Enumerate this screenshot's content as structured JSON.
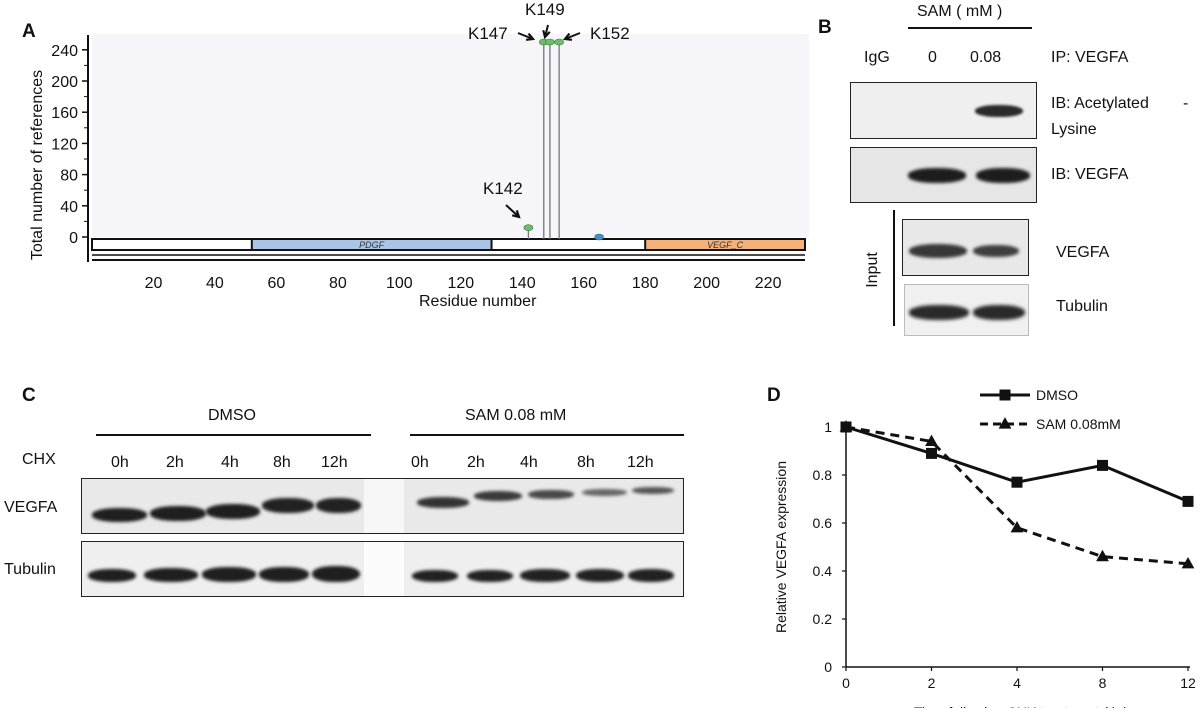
{
  "panel_a": {
    "letter": "A",
    "ylabel": "Total number of references",
    "xlabel": "Residue number",
    "yticks": [
      "0",
      "40",
      "80",
      "120",
      "160",
      "200",
      "240"
    ],
    "xticks": [
      "20",
      "40",
      "60",
      "80",
      "100",
      "120",
      "140",
      "160",
      "180",
      "200",
      "220"
    ],
    "x_range": [
      0,
      232
    ],
    "y_range": [
      0,
      250
    ],
    "domains": [
      {
        "name": "PDGF",
        "start": 52,
        "end": 130,
        "color": "#aac4e6"
      },
      {
        "name": "VEGF_C",
        "start": 180,
        "end": 232,
        "color": "#f4b27a"
      }
    ],
    "sites": [
      {
        "label": "K142",
        "residue": 142,
        "references": 12,
        "color": "#6bbf6b"
      },
      {
        "label": "K147",
        "residue": 147,
        "references": 250,
        "color": "#6bbf6b"
      },
      {
        "label": "K149",
        "residue": 149,
        "references": 250,
        "color": "#6bbf6b"
      },
      {
        "label": "K152",
        "residue": 152,
        "references": 250,
        "color": "#6bbf6b"
      },
      {
        "label": "",
        "residue": 165,
        "references": 0,
        "color": "#4a8ad0"
      }
    ]
  },
  "panel_b": {
    "letter": "B",
    "treatment": "SAM ( mM )",
    "col_igg": "IgG",
    "col_0": "0",
    "col_008": "0.08",
    "ip_label": "IP: VEGFA",
    "ib1_line1": "IB: Acetylated",
    "ib1_dash": "-",
    "ib1_line2": "Lysine",
    "ib2": "IB: VEGFA",
    "input_label": "Input",
    "input_row1": "VEGFA",
    "input_row2": "Tubulin"
  },
  "panel_c": {
    "letter": "C",
    "group1": "DMSO",
    "group2": "SAM  0.08 mM",
    "chx_label": "CHX",
    "timepoints": [
      "0h",
      "2h",
      "4h",
      "8h",
      "12h"
    ],
    "row1": "VEGFA",
    "row2": "Tubulin"
  },
  "chart_data": {
    "type": "line",
    "title": "",
    "xlabel": "Time following CHX treatment ( h )",
    "ylabel": "Relative VEGFA expression",
    "categories": [
      "0",
      "2",
      "4",
      "8",
      "12"
    ],
    "ylim": [
      0,
      1
    ],
    "yticks": [
      "0",
      "0.2",
      "0.4",
      "0.6",
      "0.8",
      "1"
    ],
    "legend_position": "top-right",
    "series": [
      {
        "name": "DMSO",
        "values": [
          1.0,
          0.89,
          0.77,
          0.84,
          0.69
        ],
        "marker": "square",
        "dash": "solid"
      },
      {
        "name": "SAM  0.08mM",
        "values": [
          1.0,
          0.94,
          0.58,
          0.46,
          0.43
        ],
        "marker": "triangle",
        "dash": "dashed"
      }
    ]
  },
  "panel_d": {
    "letter": "D"
  }
}
